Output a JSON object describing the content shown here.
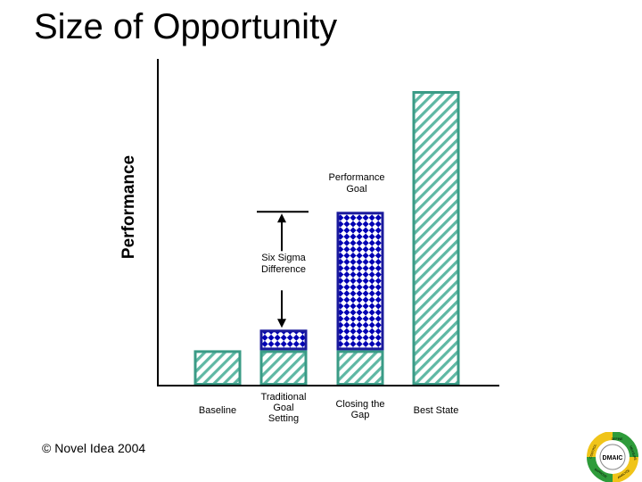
{
  "slide": {
    "title": "Size of Opportunity",
    "copyright": "© Novel Idea 2004"
  },
  "chart_data": {
    "type": "bar",
    "stacked": true,
    "ylabel": "Performance",
    "ylim": [
      0,
      100
    ],
    "grid": false,
    "legend": "none",
    "categories": [
      "Baseline",
      "Traditional Goal Setting",
      "Closing the Gap",
      "Best State"
    ],
    "category_labels": [
      [
        "Baseline"
      ],
      [
        "Traditional",
        "Goal",
        "Setting"
      ],
      [
        "Closing the",
        "Gap"
      ],
      [
        "Best State"
      ]
    ],
    "series": [
      {
        "pattern": "diagonal-hatch",
        "values": [
          12,
          12,
          12,
          100
        ]
      },
      {
        "pattern": "diamond-check",
        "values": [
          0,
          7,
          47,
          0
        ]
      }
    ],
    "annotations": {
      "performance_goal": [
        "Performance",
        "Goal"
      ],
      "six_sigma_difference": [
        "Six Sigma",
        "Difference"
      ]
    },
    "colors": {
      "hatch_stroke": "#3a9b86",
      "hatch_line": "#5fb8a4",
      "check_stroke": "#1a1a9c",
      "check_fill": "#0000b4",
      "axis": "#000000"
    }
  },
  "logo": {
    "center_text": "DMAIC",
    "ring_words": [
      "DEFINE",
      "MEASURE",
      "ANALYZE",
      "IMPROVE",
      "CONTROL"
    ]
  }
}
